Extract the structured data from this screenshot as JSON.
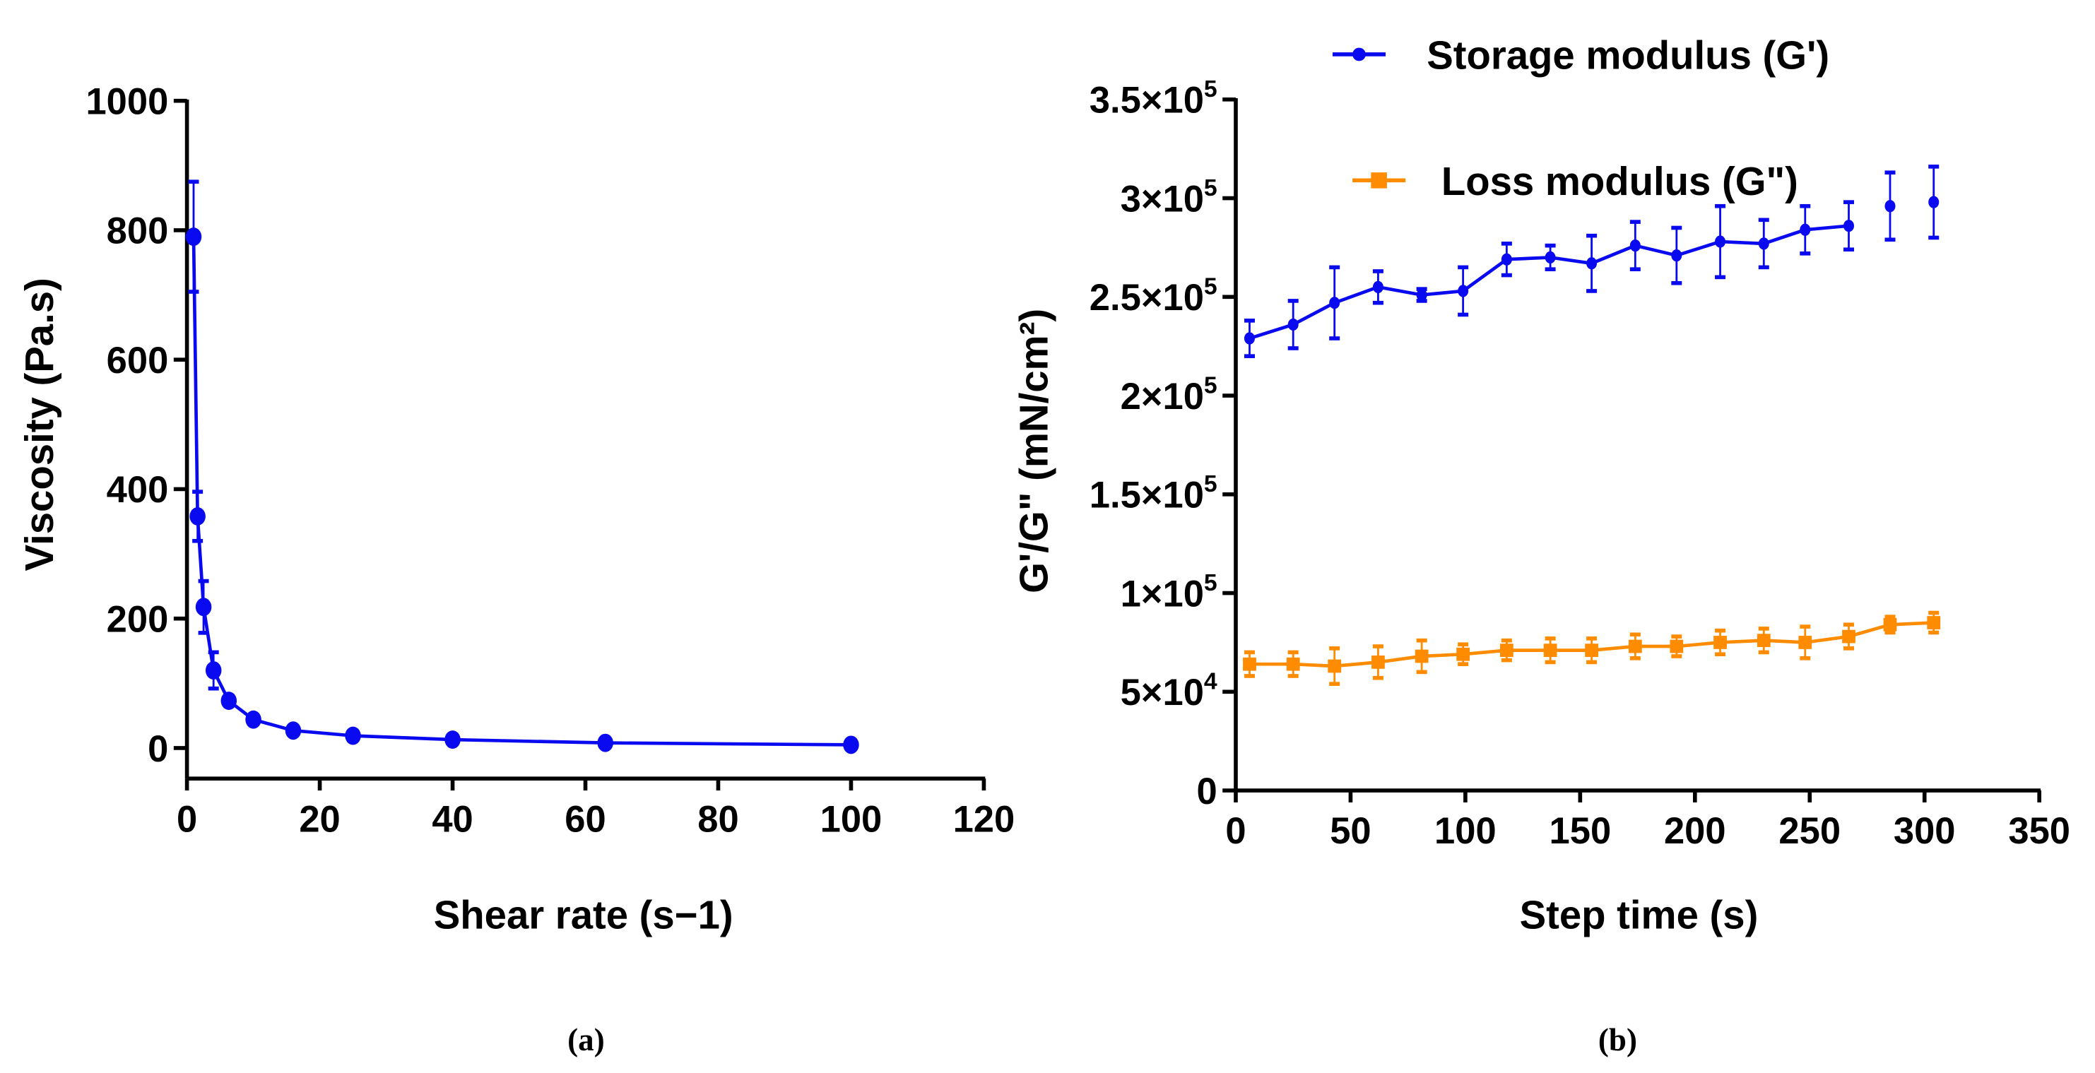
{
  "colors": {
    "storage": "#0a0af0",
    "loss": "#ff8c00",
    "viscosity": "#0a0af0",
    "axis": "#000000"
  },
  "chart_data": [
    {
      "type": "line",
      "caption": "(a)",
      "xlabel": "Shear rate (s−1)",
      "ylabel": "Viscosity (Pa.s)",
      "xlim": [
        0,
        120
      ],
      "ylim": [
        0,
        1000
      ],
      "xticks": [
        "0",
        "20",
        "40",
        "60",
        "80",
        "100",
        "120"
      ],
      "yticks": [
        "0",
        "200",
        "400",
        "600",
        "800",
        "1000"
      ],
      "grid": false,
      "series": [
        {
          "name": "Viscosity",
          "x": [
            1,
            1.6,
            2.5,
            4,
            6.3,
            10,
            16,
            25,
            40,
            63,
            100
          ],
          "y": [
            790,
            358,
            218,
            120,
            73,
            44,
            27,
            19,
            13,
            8,
            5
          ],
          "err": [
            85,
            38,
            40,
            28,
            8,
            5,
            3,
            2,
            2,
            1,
            1
          ]
        }
      ]
    },
    {
      "type": "line",
      "caption": "(b)",
      "xlabel": "Step time (s)",
      "ylabel": "G'/G\" (mN/cm²)",
      "xlim": [
        0,
        350
      ],
      "ylim": [
        0,
        350000
      ],
      "xticks": [
        "0",
        "50",
        "100",
        "150",
        "200",
        "250",
        "300",
        "350"
      ],
      "yticks": [
        {
          "mant": "0",
          "exp": ""
        },
        {
          "mant": "5×10",
          "exp": "4"
        },
        {
          "mant": "1×10",
          "exp": "5"
        },
        {
          "mant": "1.5×10",
          "exp": "5"
        },
        {
          "mant": "2×10",
          "exp": "5"
        },
        {
          "mant": "2.5×10",
          "exp": "5"
        },
        {
          "mant": "3×10",
          "exp": "5"
        },
        {
          "mant": "3.5×10",
          "exp": "5"
        }
      ],
      "legend_position": "top",
      "grid": false,
      "series": [
        {
          "name": "Storage modulus (G')",
          "x": [
            6,
            25,
            43,
            62,
            81,
            99,
            118,
            137,
            155,
            174,
            192,
            211,
            230,
            248,
            267,
            285,
            304
          ],
          "y": [
            229000,
            236000,
            247000,
            255000,
            251000,
            253000,
            269000,
            270000,
            267000,
            276000,
            271000,
            278000,
            277000,
            284000,
            286000,
            296000,
            298000
          ],
          "err": [
            9000,
            12000,
            18000,
            8000,
            3000,
            12000,
            8000,
            6000,
            14000,
            12000,
            14000,
            18000,
            12000,
            12000,
            12000,
            17000,
            18000
          ]
        },
        {
          "name": "Loss modulus (G\")",
          "x": [
            6,
            25,
            43,
            62,
            81,
            99,
            118,
            137,
            155,
            174,
            192,
            211,
            230,
            248,
            267,
            285,
            304
          ],
          "y": [
            64000,
            64000,
            63000,
            65000,
            68000,
            69000,
            71000,
            71000,
            71000,
            73000,
            73000,
            75000,
            76000,
            75000,
            78000,
            84000,
            85000
          ],
          "err": [
            6000,
            6000,
            9000,
            8000,
            8000,
            5000,
            5000,
            6000,
            6000,
            6000,
            5000,
            6000,
            6000,
            8000,
            6000,
            4000,
            5000
          ]
        }
      ]
    }
  ]
}
